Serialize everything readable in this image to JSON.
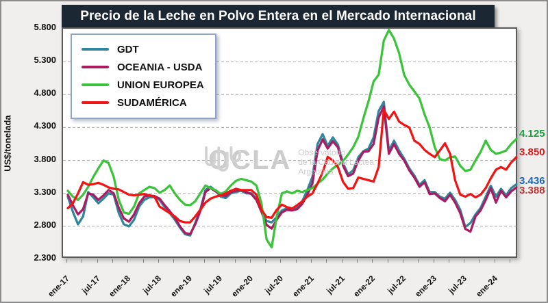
{
  "title": "Precio de la Leche en Polvo Entera en el Mercado Internacional",
  "y_axis": {
    "label": "US$/tonelada",
    "min": 2300,
    "max": 5800,
    "ticks": [
      "5.800",
      "5.300",
      "4.800",
      "4.300",
      "3.800",
      "3.300",
      "2.800",
      "2.300"
    ],
    "tick_values": [
      5800,
      5300,
      4800,
      4300,
      3800,
      3300,
      2800,
      2300
    ],
    "gridline_style": "dashed-gray"
  },
  "x_axis": {
    "tick_labels": [
      "ene-17",
      "jul-17",
      "ene-18",
      "jul-18",
      "ene-19",
      "jul-19",
      "ene-20",
      "jul-20",
      "ene-21",
      "jul-21",
      "ene-22",
      "jul-22",
      "ene-23",
      "jul-23",
      "ene-24"
    ],
    "labeled_every_months": 6,
    "minor_tick_every_months": 3
  },
  "legend": [
    {
      "label": "GDT",
      "color": "#31859C"
    },
    {
      "label": "OCEANIA - USDA",
      "color": "#A81D61"
    },
    {
      "label": "UNION EUROPEA",
      "color": "#3BC43B"
    },
    {
      "label": "SUDAMÉRICA",
      "color": "#F01414"
    }
  ],
  "watermark": {
    "name": "OCLA",
    "line1": "Observatorio",
    "line2": "de la Cadena Láctea",
    "line3": "Argentina"
  },
  "end_labels": [
    {
      "series": "UNION EUROPEA",
      "text": "4.125",
      "value": 4125,
      "color": "#1A9E3F"
    },
    {
      "series": "SUDAMÉRICA",
      "text": "3.850",
      "value": 3850,
      "color": "#E01A1A"
    },
    {
      "series": "GDT",
      "text": "3.436",
      "value": 3436,
      "color": "#1C66C0"
    },
    {
      "series": "OCEANIA - USDA",
      "text": "3.388",
      "value": 3388,
      "color": "#BF3535"
    }
  ],
  "chart_data": {
    "type": "line",
    "title": "Precio de la Leche en Polvo Entera en el Mercado Internacional",
    "ylabel": "US$/tonelada",
    "ylim": [
      2300,
      5800
    ],
    "x_start": "ene-17",
    "x_end": "may-24",
    "frequency": "monthly",
    "grid": "horizontal-dashed",
    "legend_position": "top-left-inside",
    "series": [
      {
        "name": "GDT",
        "color": "#31859C",
        "values": [
          3250,
          3020,
          2830,
          2950,
          3320,
          3240,
          3150,
          3220,
          3300,
          3280,
          3000,
          2830,
          2800,
          2900,
          3100,
          3200,
          3240,
          3240,
          3200,
          3090,
          3000,
          2900,
          2780,
          2680,
          2660,
          2850,
          3050,
          3350,
          3400,
          3340,
          3250,
          3230,
          3300,
          3320,
          3340,
          3300,
          3300,
          3220,
          3050,
          2880,
          2860,
          2940,
          3040,
          3075,
          3060,
          3090,
          3180,
          3350,
          3550,
          4050,
          4200,
          4020,
          4150,
          4040,
          3760,
          3590,
          3650,
          3850,
          3940,
          3980,
          4150,
          4550,
          4690,
          3950,
          4100,
          3950,
          3830,
          3680,
          3570,
          3430,
          3500,
          3320,
          3320,
          3250,
          3220,
          3310,
          3200,
          3050,
          2790,
          2850,
          2980,
          3080,
          3250,
          3415,
          3250,
          3370,
          3270,
          3380,
          3436
        ]
      },
      {
        "name": "OCEANIA - USDA",
        "color": "#A81D61",
        "values": [
          3280,
          3120,
          2980,
          3060,
          3300,
          3280,
          3200,
          3270,
          3350,
          3300,
          3080,
          2920,
          2870,
          2980,
          3150,
          3250,
          3270,
          3260,
          3220,
          3120,
          3030,
          2930,
          2800,
          2700,
          2680,
          2830,
          3030,
          3320,
          3380,
          3330,
          3280,
          3260,
          3320,
          3340,
          3350,
          3320,
          3290,
          3200,
          3020,
          2820,
          2765,
          2900,
          3010,
          3050,
          3040,
          3060,
          3140,
          3280,
          3450,
          3950,
          4120,
          3980,
          4090,
          4000,
          3720,
          3560,
          3600,
          3800,
          3930,
          3940,
          4050,
          4450,
          4620,
          3900,
          4050,
          3900,
          3800,
          3650,
          3540,
          3400,
          3470,
          3290,
          3300,
          3230,
          3180,
          3280,
          3160,
          3000,
          2760,
          2720,
          2950,
          3040,
          3200,
          3380,
          3160,
          3340,
          3240,
          3330,
          3388
        ]
      },
      {
        "name": "UNION EUROPEA",
        "color": "#3BC43B",
        "values": [
          3340,
          3250,
          3200,
          3280,
          3400,
          3550,
          3680,
          3800,
          3760,
          3550,
          3200,
          3010,
          2990,
          3100,
          3300,
          3350,
          3400,
          3380,
          3310,
          3350,
          3420,
          3300,
          3200,
          3130,
          3120,
          3180,
          3300,
          3420,
          3380,
          3350,
          3290,
          3330,
          3420,
          3490,
          3520,
          3500,
          3480,
          3420,
          3150,
          2600,
          2480,
          2950,
          3300,
          3330,
          3300,
          3340,
          3320,
          3350,
          3380,
          3450,
          3510,
          3600,
          3680,
          3730,
          3790,
          3890,
          4000,
          4160,
          4440,
          4700,
          5000,
          5100,
          5620,
          5780,
          5650,
          5430,
          5100,
          4950,
          4850,
          4740,
          4500,
          4300,
          4000,
          3820,
          3800,
          3850,
          3860,
          3720,
          3640,
          3660,
          3800,
          3930,
          4100,
          3960,
          3900,
          3920,
          3950,
          4050,
          4125
        ]
      },
      {
        "name": "SUDAMÉRICA",
        "color": "#F01414",
        "values": [
          3075,
          3150,
          3300,
          3470,
          3430,
          3440,
          3460,
          3430,
          3390,
          3370,
          3360,
          3320,
          3280,
          3270,
          3280,
          3290,
          3270,
          3250,
          3100,
          3050,
          3000,
          2950,
          2880,
          2860,
          2860,
          2950,
          3050,
          3160,
          3220,
          3250,
          3270,
          3300,
          3340,
          3370,
          3350,
          3350,
          3350,
          3280,
          3050,
          2940,
          2930,
          3050,
          3130,
          3090,
          3070,
          3120,
          3180,
          3250,
          3300,
          3450,
          3620,
          3855,
          3800,
          3700,
          3475,
          3370,
          3380,
          3540,
          3520,
          3500,
          3480,
          3700,
          4570,
          4430,
          4540,
          4390,
          4340,
          4300,
          4100,
          4050,
          3960,
          3900,
          3850,
          3950,
          4060,
          3900,
          3500,
          3280,
          3250,
          3290,
          3240,
          3280,
          3380,
          3530,
          3660,
          3700,
          3660,
          3770,
          3850
        ]
      }
    ]
  }
}
